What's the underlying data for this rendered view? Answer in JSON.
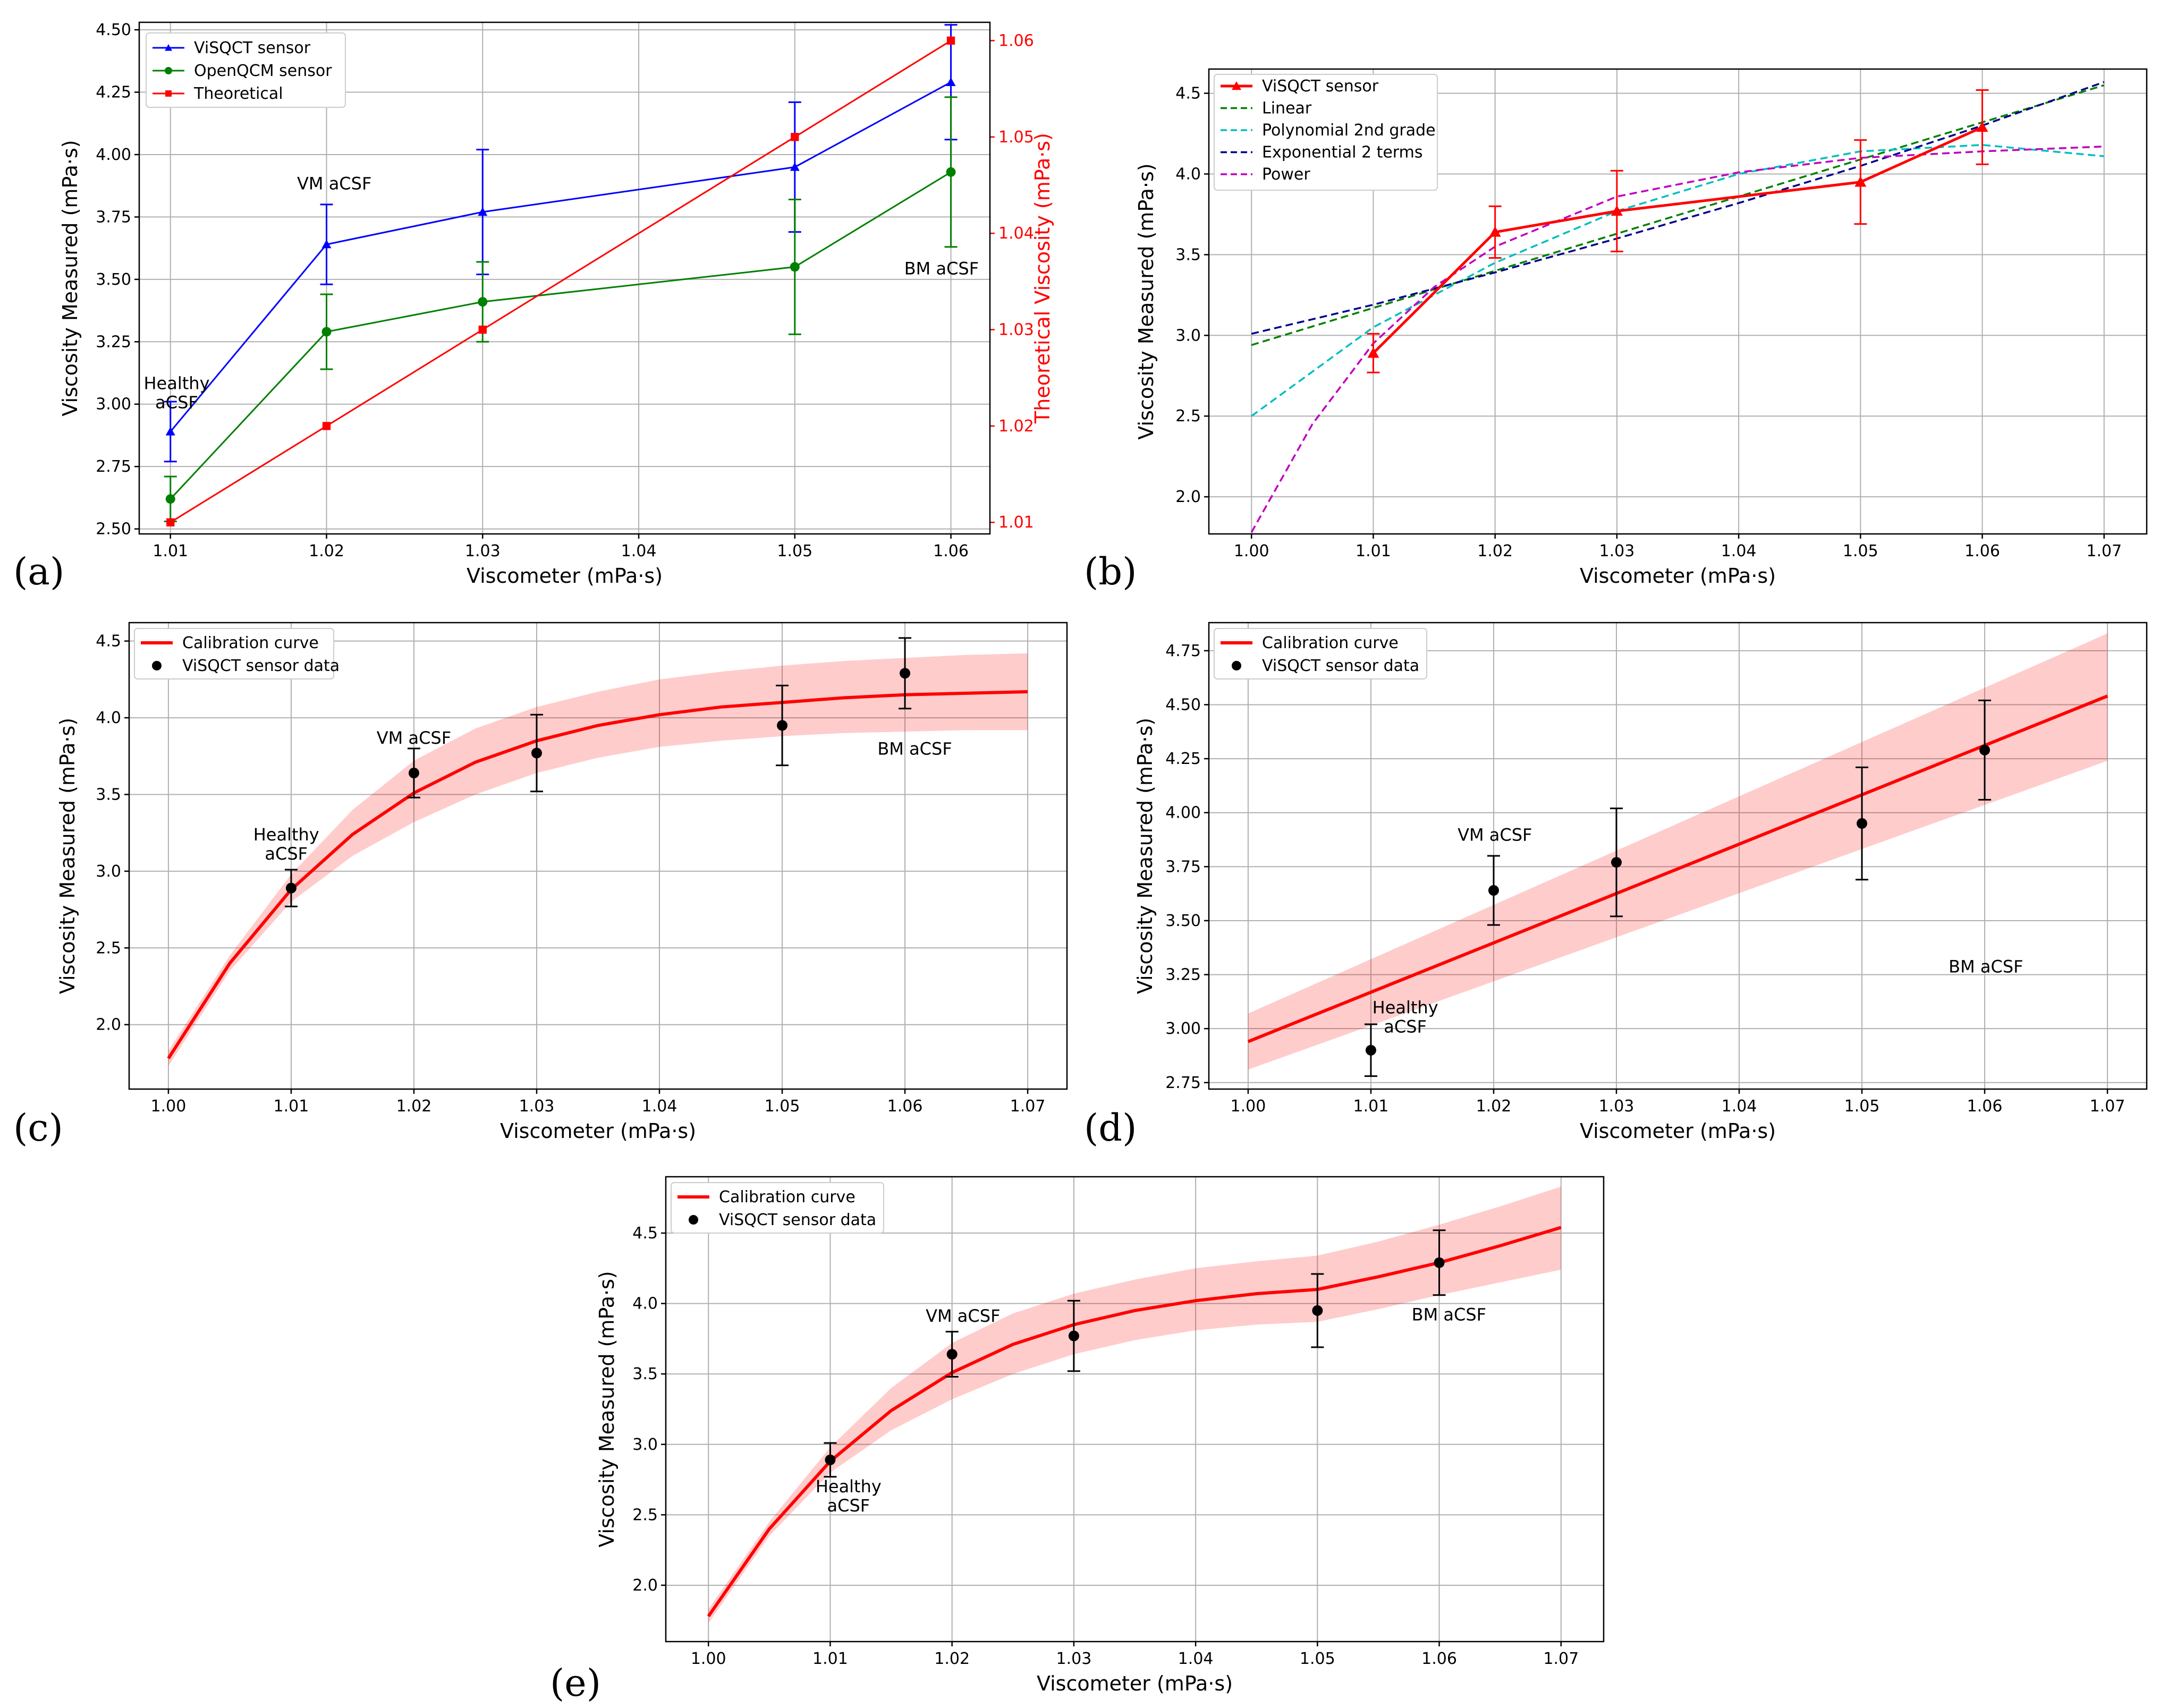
{
  "chart_data": [
    {
      "panel": "(a)",
      "type": "line",
      "xlabel": "Viscometer (mPa·s)",
      "ylabel": "Viscosity Measured (mPa·s)",
      "ylabel_right": "Theoretical Viscosity (mPa·s)",
      "xlim": [
        1.008,
        1.0625
      ],
      "ylim": [
        2.48,
        4.53
      ],
      "ylim_right": [
        1.0088,
        1.0619
      ],
      "xticks": [
        "1.01",
        "1.02",
        "1.03",
        "1.04",
        "1.05",
        "1.06"
      ],
      "yticks": [
        "2.50",
        "2.75",
        "3.00",
        "3.25",
        "3.50",
        "3.75",
        "4.00",
        "4.25",
        "4.50"
      ],
      "yticks_right": [
        "1.01",
        "1.02",
        "1.03",
        "1.04",
        "1.05",
        "1.06"
      ],
      "grid": true,
      "legend": "top-left",
      "x": [
        1.01,
        1.02,
        1.03,
        1.05,
        1.06
      ],
      "series": [
        {
          "name": "ViSQCT sensor",
          "color": "#0000ff",
          "marker": "triangle",
          "axis": "left",
          "values": [
            2.89,
            3.64,
            3.77,
            3.95,
            4.29
          ],
          "err": [
            0.12,
            0.16,
            0.25,
            0.26,
            0.23
          ]
        },
        {
          "name": "OpenQCM sensor",
          "color": "#008000",
          "marker": "circle",
          "axis": "left",
          "values": [
            2.62,
            3.29,
            3.41,
            3.55,
            3.93
          ],
          "err": [
            0.09,
            0.15,
            0.16,
            0.27,
            0.3
          ]
        },
        {
          "name": "Theoretical",
          "color": "#ff0000",
          "marker": "square",
          "axis": "right",
          "values": [
            1.01,
            1.02,
            1.03,
            1.05,
            1.06
          ]
        }
      ],
      "annotations": [
        {
          "lines": [
            "Healthy",
            "aCSF"
          ],
          "x": 1.0104,
          "y": 3.06
        },
        {
          "lines": [
            "VM aCSF"
          ],
          "x": 1.0205,
          "y": 3.86
        },
        {
          "lines": [
            "BM aCSF"
          ],
          "x": 1.0594,
          "y": 3.52
        }
      ]
    },
    {
      "panel": "(b)",
      "type": "line",
      "xlabel": "Viscometer (mPa·s)",
      "ylabel": "Viscosity Measured (mPa·s)",
      "xlim": [
        0.9965,
        1.0735
      ],
      "ylim": [
        1.77,
        4.65
      ],
      "xticks": [
        "1.00",
        "1.01",
        "1.02",
        "1.03",
        "1.04",
        "1.05",
        "1.06",
        "1.07"
      ],
      "yticks": [
        "2.0",
        "2.5",
        "3.0",
        "3.5",
        "4.0",
        "4.5"
      ],
      "grid": true,
      "legend": "top-left",
      "measured": {
        "name": "ViSQCT sensor",
        "color": "#ff0000",
        "x": [
          1.01,
          1.02,
          1.03,
          1.05,
          1.06
        ],
        "values": [
          2.89,
          3.64,
          3.77,
          3.95,
          4.29
        ],
        "err": [
          0.12,
          0.16,
          0.25,
          0.26,
          0.23
        ]
      },
      "fits": [
        {
          "name": "Linear",
          "color": "#008000",
          "x": [
            1.0,
            1.07
          ],
          "values": [
            2.94,
            4.55
          ]
        },
        {
          "name": "Polynomial 2nd grade",
          "color": "#00bfbf",
          "x": [
            1.0,
            1.01,
            1.02,
            1.03,
            1.04,
            1.05,
            1.06,
            1.07
          ],
          "values": [
            2.5,
            3.05,
            3.45,
            3.77,
            4.0,
            4.14,
            4.18,
            4.11
          ]
        },
        {
          "name": "Exponential 2 terms",
          "color": "#00008b",
          "x": [
            1.0,
            1.01,
            1.02,
            1.03,
            1.04,
            1.05,
            1.06,
            1.07
          ],
          "values": [
            3.01,
            3.19,
            3.39,
            3.6,
            3.82,
            4.05,
            4.3,
            4.57
          ]
        },
        {
          "name": "Power",
          "color": "#bf00bf",
          "x": [
            1.0,
            1.005,
            1.01,
            1.015,
            1.02,
            1.03,
            1.04,
            1.05,
            1.06,
            1.07
          ],
          "values": [
            1.78,
            2.45,
            2.95,
            3.3,
            3.55,
            3.86,
            4.01,
            4.1,
            4.14,
            4.17
          ]
        }
      ]
    },
    {
      "panel": "(c)",
      "type": "line",
      "xlabel": "Viscometer (mPa·s)",
      "ylabel": "Viscosity Measured (mPa·s)",
      "xlim": [
        0.9968,
        1.0732
      ],
      "ylim": [
        1.58,
        4.62
      ],
      "xticks": [
        "1.00",
        "1.01",
        "1.02",
        "1.03",
        "1.04",
        "1.05",
        "1.06",
        "1.07"
      ],
      "yticks": [
        "2.0",
        "2.5",
        "3.0",
        "3.5",
        "4.0",
        "4.5"
      ],
      "grid": true,
      "legend": "top-left",
      "curve": {
        "name": "Calibration curve",
        "color": "#ff0000",
        "x": [
          1.0,
          1.005,
          1.01,
          1.015,
          1.02,
          1.025,
          1.03,
          1.035,
          1.04,
          1.045,
          1.05,
          1.055,
          1.06,
          1.065,
          1.07
        ],
        "values": [
          1.78,
          2.4,
          2.88,
          3.24,
          3.51,
          3.71,
          3.85,
          3.95,
          4.02,
          4.07,
          4.1,
          4.13,
          4.15,
          4.16,
          4.17
        ],
        "band_lower": [
          1.73,
          2.35,
          2.8,
          3.1,
          3.32,
          3.5,
          3.64,
          3.74,
          3.81,
          3.85,
          3.88,
          3.9,
          3.91,
          3.92,
          3.92
        ],
        "band_upper": [
          1.83,
          2.45,
          2.98,
          3.4,
          3.72,
          3.93,
          4.07,
          4.17,
          4.25,
          4.3,
          4.34,
          4.37,
          4.39,
          4.41,
          4.42
        ]
      },
      "points": {
        "name": "ViSQCT sensor data",
        "color": "#000000",
        "x": [
          1.01,
          1.02,
          1.03,
          1.05,
          1.06
        ],
        "values": [
          2.89,
          3.64,
          3.77,
          3.95,
          4.29
        ],
        "err": [
          0.12,
          0.16,
          0.25,
          0.26,
          0.23
        ]
      },
      "annotations": [
        {
          "lines": [
            "Healthy",
            "aCSF"
          ],
          "x": 1.0096,
          "y": 3.2
        },
        {
          "lines": [
            "VM aCSF"
          ],
          "x": 1.02,
          "y": 3.83
        },
        {
          "lines": [
            "BM aCSF"
          ],
          "x": 1.0608,
          "y": 3.76
        }
      ]
    },
    {
      "panel": "(d)",
      "type": "line",
      "xlabel": "Viscometer (mPa·s)",
      "ylabel": "Viscosity Measured (mPa·s)",
      "xlim": [
        0.9968,
        1.0732
      ],
      "ylim": [
        2.72,
        4.88
      ],
      "xticks": [
        "1.00",
        "1.01",
        "1.02",
        "1.03",
        "1.04",
        "1.05",
        "1.06",
        "1.07"
      ],
      "yticks": [
        "2.75",
        "3.00",
        "3.25",
        "3.50",
        "3.75",
        "4.00",
        "4.25",
        "4.50",
        "4.75"
      ],
      "grid": true,
      "legend": "top-left",
      "curve": {
        "name": "Calibration curve",
        "color": "#ff0000",
        "x": [
          1.0,
          1.07
        ],
        "values": [
          2.94,
          4.54
        ],
        "band_lower": [
          2.81,
          4.24
        ],
        "band_upper": [
          3.07,
          4.83
        ]
      },
      "points": {
        "name": "ViSQCT sensor data",
        "color": "#000000",
        "x": [
          1.01,
          1.02,
          1.03,
          1.05,
          1.06
        ],
        "values": [
          2.9,
          3.64,
          3.77,
          3.95,
          4.29
        ],
        "err": [
          0.12,
          0.16,
          0.25,
          0.26,
          0.23
        ]
      },
      "annotations": [
        {
          "lines": [
            "Healthy",
            "aCSF"
          ],
          "x": 1.0128,
          "y": 3.07
        },
        {
          "lines": [
            "VM aCSF"
          ],
          "x": 1.0201,
          "y": 3.87
        },
        {
          "lines": [
            "BM aCSF"
          ],
          "x": 1.0601,
          "y": 3.26
        }
      ]
    },
    {
      "panel": "(e)",
      "type": "line",
      "xlabel": "Viscometer (mPa·s)",
      "ylabel": "Viscosity Measured (mPa·s)",
      "xlim": [
        0.9965,
        1.0735
      ],
      "ylim": [
        1.6,
        4.9
      ],
      "xticks": [
        "1.00",
        "1.01",
        "1.02",
        "1.03",
        "1.04",
        "1.05",
        "1.06",
        "1.07"
      ],
      "yticks": [
        "2.0",
        "2.5",
        "3.0",
        "3.5",
        "4.0",
        "4.5"
      ],
      "grid": true,
      "legend": "top-left",
      "curve": {
        "name": "Calibration curve",
        "color": "#ff0000",
        "x": [
          1.0,
          1.005,
          1.01,
          1.015,
          1.02,
          1.025,
          1.03,
          1.035,
          1.04,
          1.045,
          1.05,
          1.055,
          1.06,
          1.065,
          1.07
        ],
        "values": [
          1.78,
          2.4,
          2.88,
          3.24,
          3.51,
          3.71,
          3.85,
          3.95,
          4.02,
          4.07,
          4.1,
          4.19,
          4.29,
          4.41,
          4.54
        ],
        "band_lower": [
          1.73,
          2.35,
          2.8,
          3.1,
          3.32,
          3.5,
          3.64,
          3.74,
          3.81,
          3.85,
          3.87,
          3.96,
          4.06,
          4.15,
          4.24
        ],
        "band_upper": [
          1.83,
          2.45,
          2.98,
          3.4,
          3.72,
          3.93,
          4.07,
          4.17,
          4.25,
          4.3,
          4.34,
          4.44,
          4.56,
          4.69,
          4.83
        ]
      },
      "points": {
        "name": "ViSQCT sensor data",
        "color": "#000000",
        "x": [
          1.01,
          1.02,
          1.03,
          1.05,
          1.06
        ],
        "values": [
          2.89,
          3.64,
          3.77,
          3.95,
          4.29
        ],
        "err": [
          0.12,
          0.16,
          0.25,
          0.26,
          0.23
        ]
      },
      "annotations": [
        {
          "lines": [
            "Healthy",
            "aCSF"
          ],
          "x": 1.0115,
          "y": 2.66
        },
        {
          "lines": [
            "VM aCSF"
          ],
          "x": 1.0209,
          "y": 3.87
        },
        {
          "lines": [
            "BM aCSF"
          ],
          "x": 1.0608,
          "y": 3.88
        }
      ]
    }
  ]
}
